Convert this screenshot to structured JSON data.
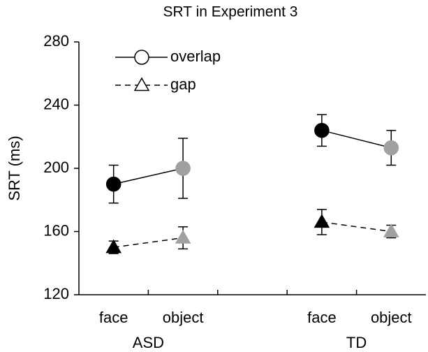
{
  "chart_data": {
    "type": "line",
    "title": "SRT in Experiment 3",
    "y_label": "SRT (ms)",
    "categories": [
      "face",
      "object",
      "face",
      "object"
    ],
    "groups": [
      "ASD",
      "TD"
    ],
    "point_colors": [
      "#000000",
      "#a0a0a0",
      "#000000",
      "#a0a0a0"
    ],
    "ylim": [
      120,
      280
    ],
    "yticks": [
      120,
      160,
      200,
      240,
      280
    ],
    "legend": "upper left",
    "series": [
      {
        "name": "overlap",
        "color": "#000000",
        "marker": "circle",
        "dash": false,
        "values": [
          190,
          200,
          224,
          213
        ],
        "errors": [
          12,
          19,
          10,
          11
        ]
      },
      {
        "name": "gap",
        "color": "#000000",
        "marker": "triangle",
        "dash": true,
        "values": [
          150,
          156,
          166,
          160
        ],
        "errors": [
          4,
          7,
          8,
          4
        ]
      }
    ]
  }
}
